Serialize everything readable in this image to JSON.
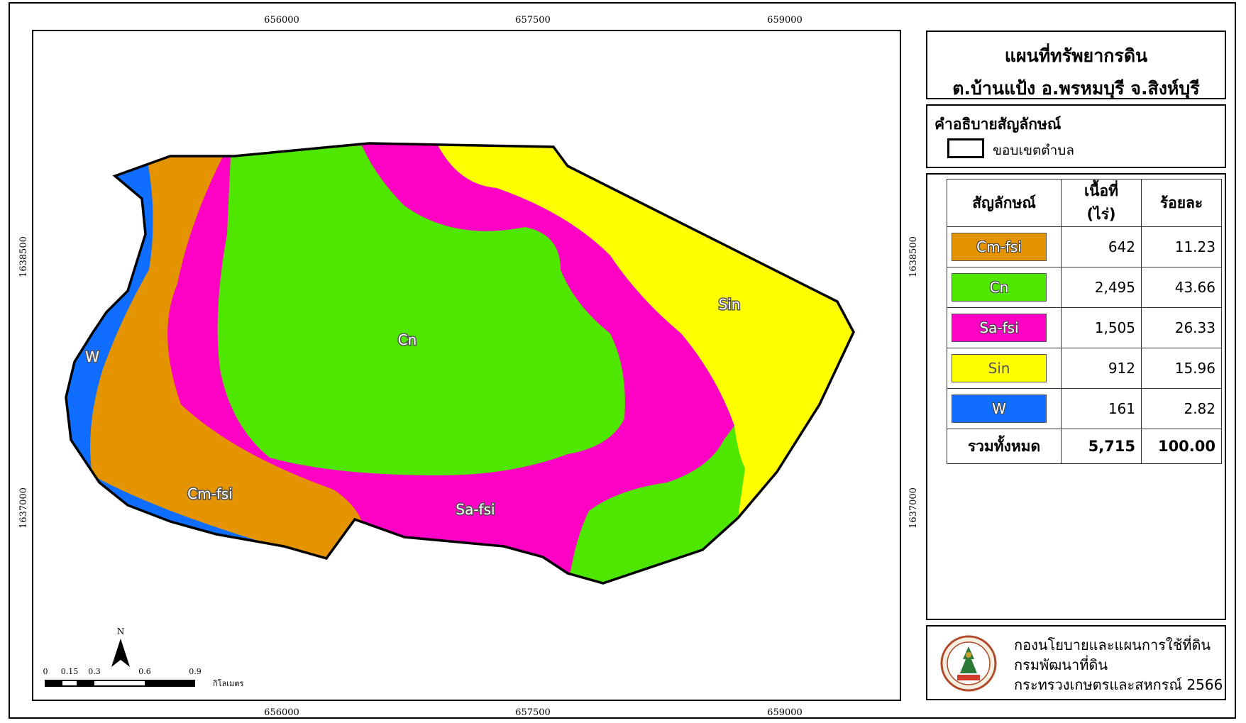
{
  "map": {
    "x_ticks": [
      "656000",
      "657500",
      "659000"
    ],
    "y_ticks": [
      "1638500",
      "1637000"
    ],
    "north_label": "N",
    "scale_ticks": [
      "0",
      "0.15",
      "0.3",
      "0.6",
      "0.9"
    ],
    "scale_unit": "กิโลเมตร",
    "zone_labels": {
      "w": "W",
      "cm": "Cm-fsi",
      "cn": "Cn",
      "sa": "Sa-fsi",
      "sin": "Sin"
    },
    "colors": {
      "cm": "#E49400",
      "cn": "#4FE600",
      "sa": "#FF00C5",
      "sin": "#FFFF00",
      "w": "#0F6EFF"
    }
  },
  "title": {
    "line1": "แผนที่ทรัพยากรดิน",
    "line2": "ต.บ้านแป้ง อ.พรหมบุรี จ.สิงห์บุรี"
  },
  "legend": {
    "heading": "คำอธิบายสัญลักษณ์",
    "boundary_label": "ขอบเขตตำบล"
  },
  "table": {
    "headers": {
      "symbol": "สัญลักษณ์",
      "area": "เนื้อที่ (ไร่)",
      "percent": "ร้อยละ"
    },
    "rows": [
      {
        "symbol": "Cm-fsi",
        "area": "642",
        "percent": "11.23",
        "color": "#E49400"
      },
      {
        "symbol": "Cn",
        "area": "2,495",
        "percent": "43.66",
        "color": "#4FE600"
      },
      {
        "symbol": "Sa-fsi",
        "area": "1,505",
        "percent": "26.33",
        "color": "#FF00C5"
      },
      {
        "symbol": "Sin",
        "area": "912",
        "percent": "15.96",
        "color": "#FFFF00"
      },
      {
        "symbol": "W",
        "area": "161",
        "percent": "2.82",
        "color": "#0F6EFF"
      }
    ],
    "total": {
      "label": "รวมทั้งหมด",
      "area": "5,715",
      "percent": "100.00"
    }
  },
  "credit": {
    "line1": "กองนโยบายและแผนการใช้ที่ดิน",
    "line2": "กรมพัฒนาที่ดิน",
    "line3": "กระทรวงเกษตรและสหกรณ์ 2566"
  }
}
